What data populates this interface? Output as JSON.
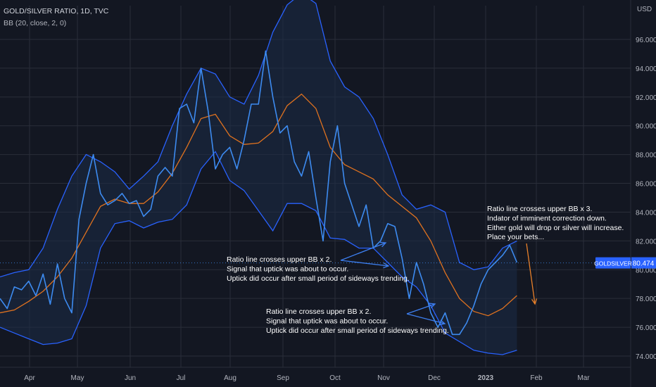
{
  "header": {
    "symbol_line": "GOLD/SILVER RATIO, 1D, TVC",
    "indicator_line": "BB (20, close, 2, 0)"
  },
  "price_axis": {
    "unit": "USD"
  },
  "price_tag": {
    "symbol": "GOLDSILVER",
    "value": "80.474"
  },
  "annotations": {
    "note_bb3": [
      "Ratio line crosses upper BB x 3.",
      "Indator of imminent correction down.",
      "Either gold will drop or silver will increase.",
      "Place your bets..."
    ],
    "note_oct": [
      "Ratio line crosses upper BB x 2.",
      "Signal that uptick was about to occur.",
      "Uptick did occur after small period of sideways trending."
    ],
    "note_nov": [
      "Ratio line crosses upper BB x 2.",
      "Signal that uptick was about to occur.",
      "Uptick did occur after small period of sideways trending."
    ]
  },
  "colors": {
    "background": "#131722",
    "grid": "#2a2e39",
    "price": "#3d8bf0",
    "basis": "#e0721f",
    "bands": "#2962ff",
    "band_fill": "#1b2b47",
    "axis_text": "#b2b5be",
    "annotation_text": "#ffffff",
    "arrow_blue": "#3d7ff0",
    "arrow_orange": "#e8802a",
    "tag_bg": "#2962ff"
  },
  "chart_data": {
    "type": "line",
    "y_axis": {
      "ylim": [
        73.0,
        99.0
      ],
      "ticks": [
        "74.000",
        "76.000",
        "78.000",
        "80.000",
        "82.000",
        "84.000",
        "86.000",
        "88.000",
        "90.000",
        "92.000",
        "94.000",
        "96.000"
      ]
    },
    "x_axis": {
      "ticks": [
        "Apr",
        "May",
        "Jun",
        "Jul",
        "Aug",
        "Sep",
        "Oct",
        "Nov",
        "Dec",
        "2023",
        "Feb",
        "Mar"
      ]
    },
    "grid": true,
    "series": [
      {
        "x": [
          0,
          4,
          8,
          12,
          16,
          20,
          24,
          28,
          32,
          36,
          40,
          44,
          48,
          52,
          56,
          60,
          64,
          68,
          72,
          76,
          80,
          84,
          88,
          92,
          96,
          100,
          104,
          108,
          112,
          116,
          120,
          124,
          128,
          132,
          136,
          140,
          144,
          148,
          152,
          156,
          160,
          164,
          168,
          172,
          176,
          180,
          184,
          188,
          192,
          196,
          200,
          204,
          208,
          212,
          216,
          220,
          224,
          228,
          232,
          236,
          240,
          244,
          248,
          252,
          256,
          260,
          264,
          268,
          272,
          276,
          280,
          284,
          288
        ],
        "values": [
          78.0,
          77.3,
          78.8,
          78.6,
          79.2,
          78.2,
          79.7,
          77.6,
          80.4,
          78.0,
          77.0,
          83.5,
          86.0,
          88.0,
          85.3,
          84.5,
          84.8,
          85.3,
          84.6,
          84.8,
          83.7,
          84.2,
          86.5,
          87.1,
          86.5,
          91.2,
          91.5,
          90.2,
          94.0,
          91.0,
          87.0,
          88.0,
          88.5,
          87.0,
          89.0,
          91.5,
          91.5,
          95.2,
          92.0,
          89.5,
          90.0,
          87.5,
          86.5,
          88.2,
          85.0,
          82.0,
          87.5,
          90.0,
          86.0,
          84.5,
          83.0,
          84.5,
          81.5,
          82.0,
          83.2,
          83.0,
          80.8,
          78.0,
          80.5,
          79.0,
          77.0,
          76.0,
          77.0,
          75.5,
          75.5,
          76.3,
          77.5,
          79.0,
          80.0,
          80.5,
          81.0,
          81.7,
          80.5
        ]
      },
      {
        "x": [
          0,
          8,
          16,
          24,
          32,
          40,
          48,
          56,
          64,
          72,
          80,
          88,
          96,
          104,
          112,
          120,
          128,
          136,
          144,
          152,
          160,
          168,
          176,
          184,
          192,
          200,
          208,
          216,
          224,
          232,
          240,
          248,
          256,
          264,
          272,
          280,
          288
        ],
        "values": [
          77.0,
          77.2,
          77.8,
          78.5,
          79.5,
          80.8,
          82.6,
          84.4,
          84.9,
          84.6,
          84.6,
          85.4,
          86.7,
          88.5,
          90.5,
          90.8,
          89.3,
          88.7,
          88.8,
          89.6,
          91.4,
          92.2,
          91.2,
          88.5,
          87.3,
          86.8,
          86.3,
          85.2,
          84.4,
          83.6,
          82.0,
          79.8,
          78.0,
          77.1,
          76.8,
          77.3,
          78.2
        ]
      },
      {
        "x": [
          0,
          8,
          16,
          24,
          32,
          40,
          48,
          56,
          64,
          72,
          80,
          88,
          96,
          104,
          112,
          120,
          128,
          136,
          144,
          152,
          160,
          168,
          176,
          184,
          192,
          200,
          208,
          216,
          224,
          232,
          240,
          248,
          256,
          264,
          272,
          280,
          288
        ],
        "values": [
          79.5,
          79.8,
          80.0,
          81.5,
          84.2,
          86.5,
          88.0,
          87.5,
          86.8,
          85.6,
          86.5,
          87.5,
          90.0,
          92.2,
          94.0,
          93.6,
          92.0,
          91.5,
          93.5,
          96.5,
          98.4,
          99.2,
          98.5,
          94.5,
          92.7,
          92.0,
          90.5,
          88.0,
          85.2,
          84.2,
          84.5,
          84.0,
          80.5,
          80.0,
          80.2,
          81.5,
          82.0
        ]
      },
      {
        "x": [
          0,
          8,
          16,
          24,
          32,
          40,
          48,
          56,
          64,
          72,
          80,
          88,
          96,
          104,
          112,
          120,
          128,
          136,
          144,
          152,
          160,
          168,
          176,
          184,
          192,
          200,
          208,
          216,
          224,
          232,
          240,
          248,
          256,
          264,
          272,
          280,
          288
        ],
        "values": [
          76.0,
          75.6,
          75.2,
          74.8,
          74.9,
          75.2,
          77.5,
          81.5,
          83.2,
          83.4,
          82.9,
          83.3,
          83.5,
          84.5,
          87.0,
          88.2,
          86.2,
          85.5,
          84.1,
          82.7,
          84.6,
          84.6,
          84.1,
          82.2,
          82.1,
          81.5,
          81.5,
          80.5,
          79.5,
          78.8,
          77.5,
          75.6,
          75.0,
          74.4,
          74.2,
          74.1,
          74.4
        ]
      }
    ]
  }
}
